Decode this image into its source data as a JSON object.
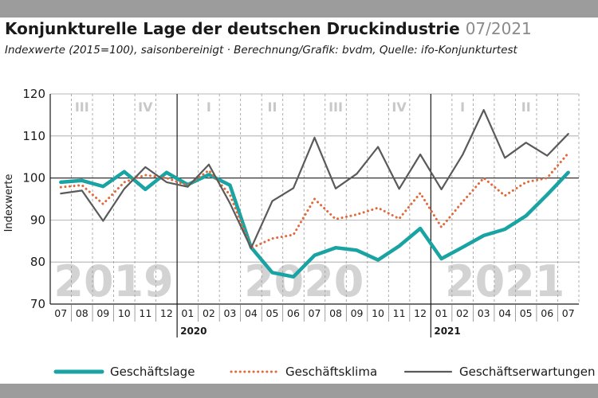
{
  "header": {
    "title": "Konjunkturelle Lage der deutschen Druckindustrie",
    "date": "07/2021",
    "subtitle": "Indexwerte (2015=100), saisonbereinigt · Berechnung/Grafik: bvdm, Quelle: ifo-Konjunkturtest"
  },
  "chart_data": {
    "type": "line",
    "ylabel": "Indexwerte",
    "ylim": [
      70,
      120
    ],
    "yticks": [
      70,
      80,
      90,
      100,
      110,
      120
    ],
    "grid": true,
    "legend_position": "bottom",
    "categories": [
      "07",
      "08",
      "09",
      "10",
      "11",
      "12",
      "01",
      "02",
      "03",
      "04",
      "05",
      "06",
      "07",
      "08",
      "09",
      "10",
      "11",
      "12",
      "01",
      "02",
      "03",
      "04",
      "05",
      "06",
      "07"
    ],
    "year_markers": [
      {
        "index": 6,
        "label": "2020"
      },
      {
        "index": 18,
        "label": "2021"
      }
    ],
    "background_years": [
      {
        "label": "2019",
        "start": 0,
        "end": 5
      },
      {
        "label": "2020",
        "start": 6,
        "end": 17
      },
      {
        "label": "2021",
        "start": 18,
        "end": 24
      }
    ],
    "quarters": [
      {
        "label": "III",
        "start": 0,
        "end": 2
      },
      {
        "label": "IV",
        "start": 3,
        "end": 5
      },
      {
        "label": "I",
        "start": 6,
        "end": 8
      },
      {
        "label": "II",
        "start": 9,
        "end": 11
      },
      {
        "label": "III",
        "start": 12,
        "end": 14
      },
      {
        "label": "IV",
        "start": 15,
        "end": 17
      },
      {
        "label": "I",
        "start": 18,
        "end": 20
      },
      {
        "label": "II",
        "start": 21,
        "end": 23
      }
    ],
    "series": [
      {
        "name": "Geschäftslage",
        "color": "#1aa3a3",
        "style": "solid",
        "values": [
          99.0,
          99.4,
          98.0,
          101.5,
          97.3,
          101.3,
          98.4,
          100.8,
          98.3,
          83.5,
          77.5,
          76.5,
          81.6,
          83.4,
          82.8,
          80.5,
          83.8,
          88.0,
          80.8,
          83.5,
          86.3,
          87.8,
          91.0,
          96.0,
          101.3
        ]
      },
      {
        "name": "Geschäftsklima",
        "color": "#e06a3c",
        "style": "dotted",
        "values": [
          97.8,
          98.3,
          93.8,
          99.0,
          100.7,
          100.0,
          98.2,
          101.8,
          96.0,
          83.3,
          85.6,
          86.5,
          95.0,
          90.2,
          91.3,
          92.9,
          90.3,
          96.4,
          88.3,
          94.3,
          100.0,
          95.8,
          99.0,
          100.0,
          105.9
        ]
      },
      {
        "name": "Geschäftserwartungen",
        "color": "#5a5a5a",
        "style": "solid",
        "values": [
          96.3,
          97.0,
          89.8,
          97.4,
          102.6,
          99.0,
          97.9,
          103.2,
          94.0,
          83.3,
          94.5,
          97.6,
          109.6,
          97.5,
          101.0,
          107.4,
          97.4,
          105.6,
          97.3,
          105.5,
          116.2,
          104.8,
          108.4,
          105.3,
          110.5
        ]
      }
    ]
  }
}
